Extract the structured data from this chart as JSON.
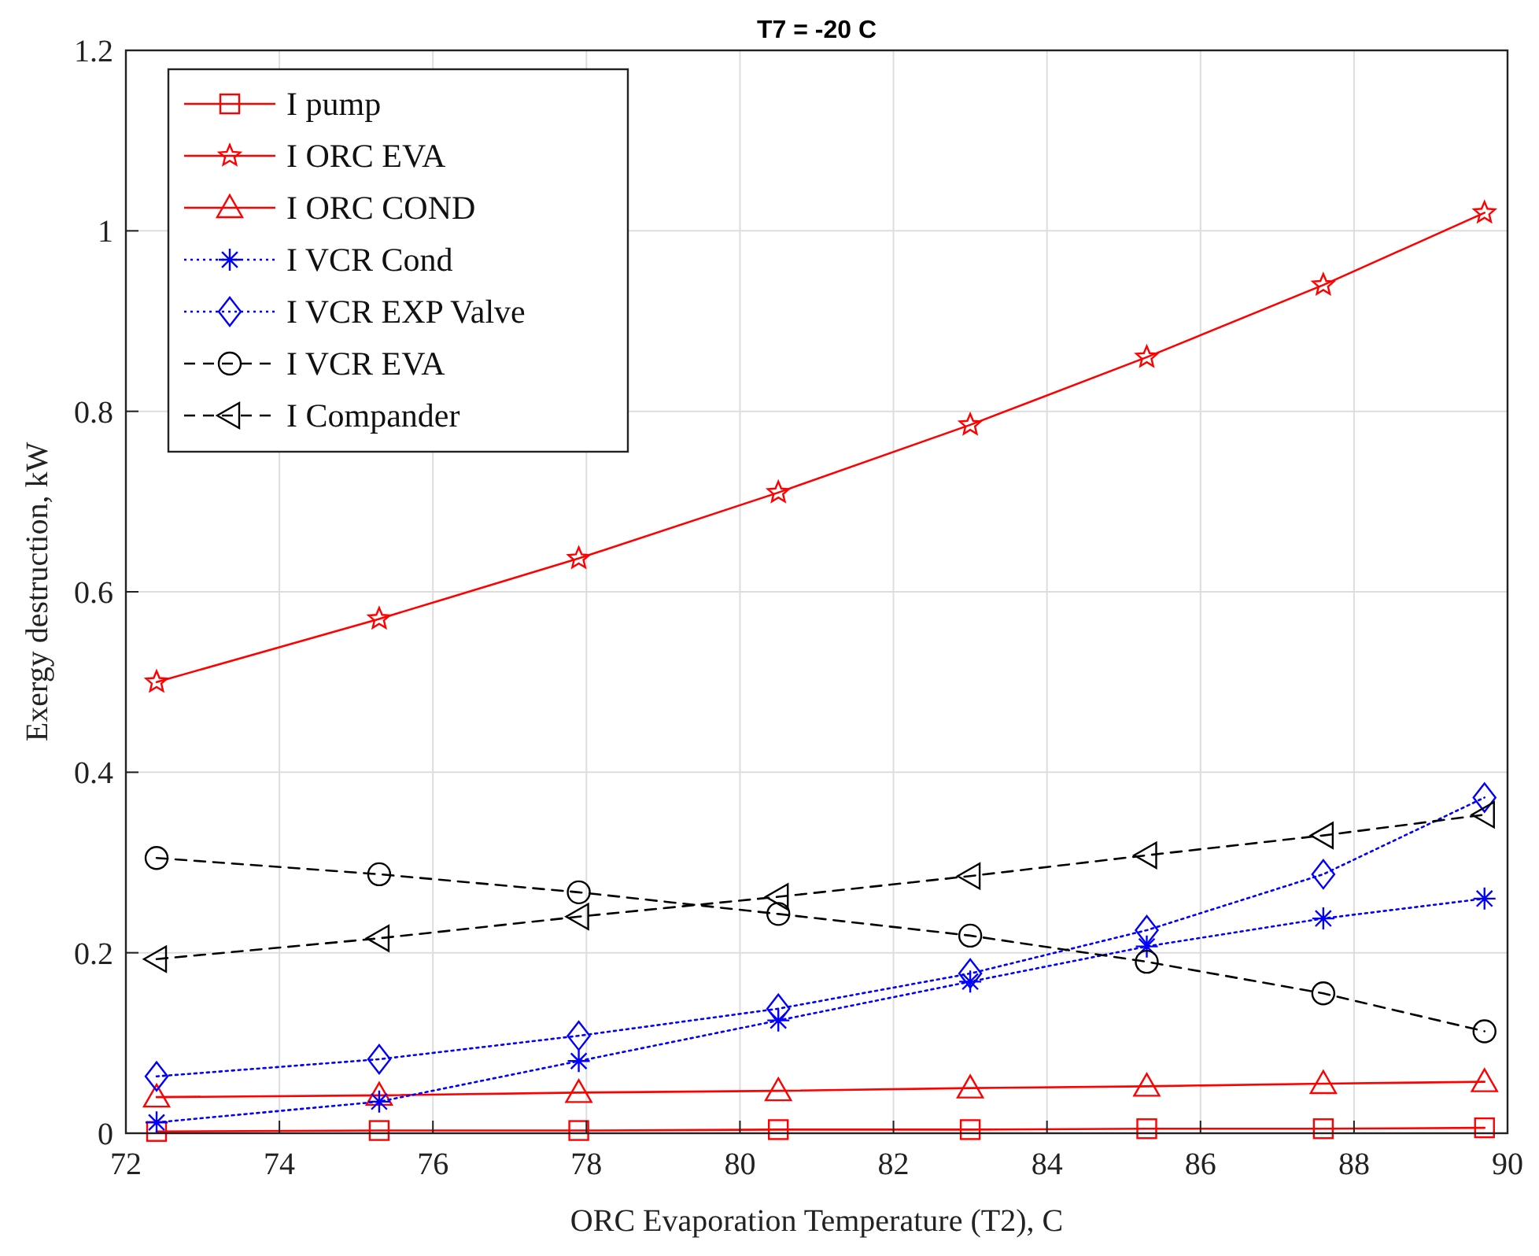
{
  "chart_data": {
    "type": "line",
    "title": "T7 = -20 C",
    "xlabel": "ORC Evaporation Temperature (T2), C",
    "ylabel": "Exergy destruction,  kW",
    "x": [
      72.4,
      75.3,
      77.9,
      80.5,
      83.0,
      85.3,
      87.6,
      89.7
    ],
    "series": [
      {
        "name": "I pump",
        "color": "#ff0000",
        "marker": "square",
        "line_style": "solid",
        "values": [
          0.002,
          0.003,
          0.003,
          0.004,
          0.004,
          0.005,
          0.005,
          0.006
        ]
      },
      {
        "name": "I ORC EVA",
        "color": "#ff0000",
        "marker": "star",
        "line_style": "solid",
        "values": [
          0.5,
          0.57,
          0.637,
          0.71,
          0.785,
          0.86,
          0.94,
          1.02
        ]
      },
      {
        "name": "I ORC COND",
        "color": "#ff0000",
        "marker": "triangle",
        "line_style": "solid",
        "values": [
          0.04,
          0.042,
          0.045,
          0.047,
          0.05,
          0.052,
          0.055,
          0.057
        ]
      },
      {
        "name": "I VCR Cond",
        "color": "#0000ff",
        "marker": "cross",
        "line_style": "dotted",
        "values": [
          0.012,
          0.035,
          0.08,
          0.125,
          0.168,
          0.207,
          0.238,
          0.26
        ]
      },
      {
        "name": "I VCR EXP Valve",
        "color": "#0000ff",
        "marker": "diamond",
        "line_style": "dotted",
        "values": [
          0.063,
          0.082,
          0.108,
          0.138,
          0.177,
          0.225,
          0.287,
          0.372
        ]
      },
      {
        "name": "I VCR EVA",
        "color": "#000000",
        "marker": "circle",
        "line_style": "dashed",
        "values": [
          0.305,
          0.287,
          0.267,
          0.243,
          0.219,
          0.19,
          0.155,
          0.113
        ]
      },
      {
        "name": "I Compander",
        "color": "#000000",
        "marker": "triangle-left",
        "line_style": "dashed",
        "values": [
          0.193,
          0.216,
          0.24,
          0.262,
          0.285,
          0.308,
          0.33,
          0.353
        ]
      }
    ],
    "xlim": [
      72,
      90
    ],
    "xticks": [
      72,
      74,
      76,
      78,
      80,
      82,
      84,
      86,
      88,
      90
    ],
    "ylim": [
      0,
      1.2
    ],
    "yticks": [
      0,
      0.2,
      0.4,
      0.6,
      0.8,
      1,
      1.2
    ],
    "grid": true,
    "legend": "top left"
  }
}
